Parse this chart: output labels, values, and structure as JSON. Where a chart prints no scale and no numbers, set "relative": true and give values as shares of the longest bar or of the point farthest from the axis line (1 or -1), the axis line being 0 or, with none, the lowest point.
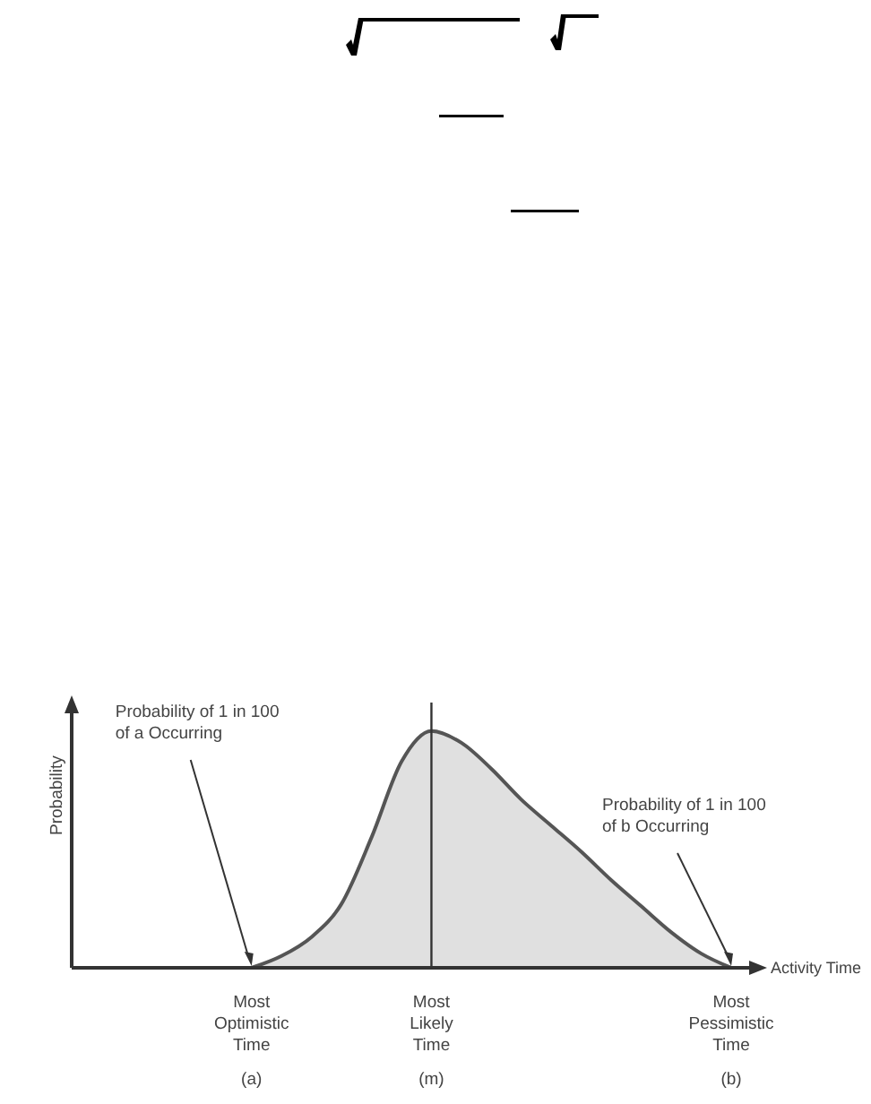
{
  "chart_data": {
    "type": "area",
    "relative": true,
    "ylabel": "Probability",
    "xlabel": "Activity Time",
    "categories": [
      null,
      null,
      null,
      null,
      null,
      null,
      "Most\nOptimistic\nTime\n(a)",
      null,
      null,
      null,
      null,
      null,
      "Most\nLikely\nTime\n(m)",
      null,
      null,
      null,
      null,
      null,
      null,
      null,
      null,
      null,
      "Most\nPessimistic\nTime\n(b)"
    ],
    "series": [
      {
        "color": "#555555",
        "values": [
          null,
          null,
          null,
          null,
          null,
          null,
          0,
          0.05,
          0.13,
          0.27,
          0.55,
          0.87,
          1,
          0.95,
          0.84,
          0.71,
          0.6,
          0.49,
          0.37,
          0.26,
          0.15,
          0.06,
          0
        ]
      }
    ],
    "ref_lines": [
      {
        "axis": "x",
        "value": "Most\nLikely\nTime\n(m)",
        "color": "#333333"
      }
    ],
    "annotations": [
      {
        "text": "Probability of 1 in 100\nof a Occurring",
        "x": "Most\nOptimistic\nTime\n(a)",
        "y": 0
      },
      {
        "text": "Probability of 1 in 100\nof b Occurring",
        "x": "Most\nPessimistic\nTime\n(b)",
        "y": 0
      }
    ],
    "grid": false,
    "legend": false
  }
}
